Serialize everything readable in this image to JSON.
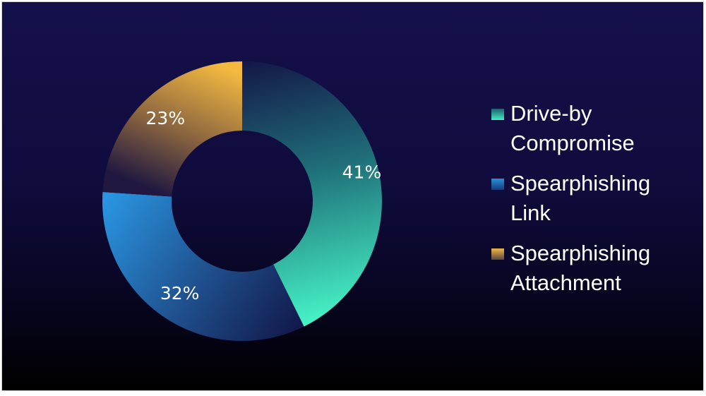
{
  "chart_data": {
    "type": "pie",
    "donut": true,
    "title": "",
    "categories": [
      "Drive-by Compromise",
      "Spearphishing Link",
      "Spearphishing Attachment"
    ],
    "values": [
      41,
      32,
      23
    ],
    "value_suffix": "%",
    "data_labels": [
      "41%",
      "32%",
      "23%"
    ],
    "colors": [
      "#3ee8c0",
      "#2a8fd8",
      "#f0b845"
    ],
    "legend_position": "right"
  },
  "legend": {
    "items": [
      {
        "label_line1": "Drive-by",
        "label_line2": "Compromise"
      },
      {
        "label_line1": "Spearphishing",
        "label_line2": "Link"
      },
      {
        "label_line1": "Spearphishing",
        "label_line2": "Attachment"
      }
    ]
  }
}
